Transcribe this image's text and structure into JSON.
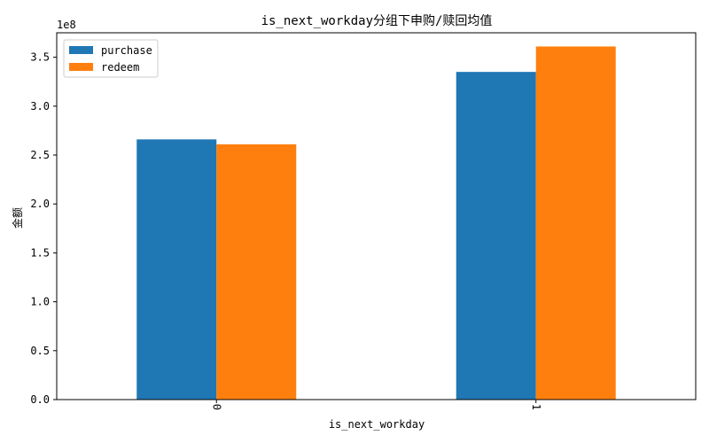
{
  "chart_data": {
    "type": "bar",
    "title": "is_next_workday分组下申购/赎回均值",
    "xlabel": "is_next_workday",
    "ylabel": "金额",
    "categories": [
      "0",
      "1"
    ],
    "series": [
      {
        "name": "purchase",
        "values": [
          266000000,
          335000000
        ],
        "color": "#1f77b4"
      },
      {
        "name": "redeem",
        "values": [
          261000000,
          361000000
        ],
        "color": "#ff7f0e"
      }
    ],
    "ylim": [
      0,
      375000000
    ],
    "yticks": [
      0,
      50000000,
      100000000,
      150000000,
      200000000,
      250000000,
      300000000,
      350000000
    ],
    "ytick_labels": [
      "0.0",
      "0.5",
      "1.0",
      "1.5",
      "2.0",
      "2.5",
      "3.0",
      "3.5"
    ],
    "y_offset_label": "1e8",
    "legend_position": "top-left",
    "grid": false
  }
}
